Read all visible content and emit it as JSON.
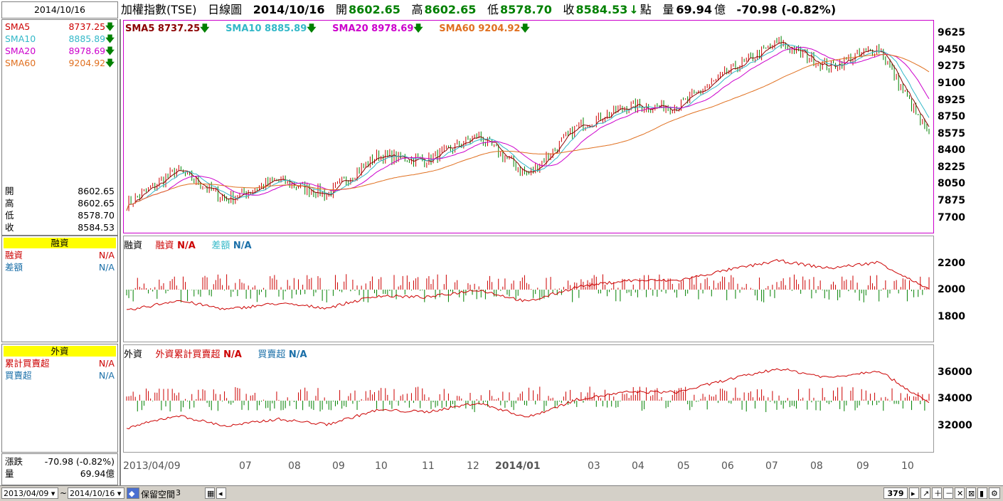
{
  "left": {
    "date": "2014/10/16",
    "sma": [
      {
        "label": "SMA5",
        "value": "8737.25",
        "color": "#cc0000"
      },
      {
        "label": "SMA10",
        "value": "8885.89",
        "color": "#33b8c8"
      },
      {
        "label": "SMA20",
        "value": "8978.69",
        "color": "#cc00cc"
      },
      {
        "label": "SMA60",
        "value": "9204.92",
        "color": "#e07020"
      }
    ],
    "ohlc": [
      {
        "k": "開",
        "v": "8602.65"
      },
      {
        "k": "高",
        "v": "8602.65"
      },
      {
        "k": "低",
        "v": "8578.70"
      },
      {
        "k": "收",
        "v": "8584.53"
      }
    ],
    "margin_title": "融資",
    "margin_rows": [
      {
        "k": "融資",
        "v": "N/A",
        "color": "#cc0000"
      },
      {
        "k": "差額",
        "v": "N/A",
        "color": "#1a6fa8"
      }
    ],
    "foreign_title": "外資",
    "foreign_rows": [
      {
        "k": "累計買賣超",
        "v": "N/A",
        "color": "#cc0000"
      },
      {
        "k": "買賣超",
        "v": "N/A",
        "color": "#1a6fa8"
      }
    ],
    "change_label": "漲跌",
    "change_value": "-70.98 (-0.82%)",
    "volume_label": "量",
    "volume_value": "69.94億"
  },
  "header": {
    "name": "加權指數(TSE)",
    "type": "日線圖",
    "date": "2014/10/16",
    "open_label": "開",
    "open": "8602.65",
    "high_label": "高",
    "high": "8602.65",
    "low_label": "低",
    "low": "8578.70",
    "close_label": "收",
    "close": "8584.53",
    "close_arrow": "↓",
    "unit": "點",
    "vol_label": "量",
    "volume": "69.94",
    "vol_unit": "億",
    "change": "-70.98 (-0.82%)"
  },
  "price_legend": [
    {
      "text": "SMA5 8737.25",
      "color": "#8b0000"
    },
    {
      "text": "SMA10 8885.89",
      "color": "#33b8c8"
    },
    {
      "text": "SMA20 8978.69",
      "color": "#cc00cc"
    },
    {
      "text": "SMA60 9204.92",
      "color": "#e07020"
    }
  ],
  "price_axis": [
    "9625",
    "9450",
    "9275",
    "9100",
    "8925",
    "8750",
    "8575",
    "8400",
    "8225",
    "8050",
    "7875",
    "7700"
  ],
  "margin_legend": {
    "a": "融資",
    "b": "融資",
    "b_val": "N/A",
    "c": "差額",
    "c_val": "N/A"
  },
  "margin_axis": [
    "2200",
    "2000",
    "1800"
  ],
  "foreign_legend": {
    "a": "外資",
    "b": "外資累計買賣超",
    "b_val": "N/A",
    "c": "買賣超",
    "c_val": "N/A"
  },
  "foreign_axis": [
    "36000",
    "34000",
    "32000"
  ],
  "x_ticks": [
    "2013/04/09",
    "07",
    "08",
    "09",
    "10",
    "11",
    "12",
    "2014/01",
    "03",
    "04",
    "05",
    "06",
    "07",
    "08",
    "09",
    "10"
  ],
  "toolbar": {
    "start": "2013/04/09",
    "tilde": "~",
    "end": "2014/10/16",
    "reserve_label": "保留空間",
    "reserve_value": "3",
    "count": "379"
  },
  "chart_data": {
    "type": "line",
    "title": "加權指數(TSE) 日線圖",
    "series": [
      {
        "name": "收",
        "approx_monthly": [
          7900,
          8250,
          7950,
          8150,
          8000,
          8400,
          8350,
          8600,
          8200,
          8700,
          8900,
          8900,
          9250,
          9550,
          9300,
          9500,
          8584
        ]
      }
    ],
    "ylim": [
      7600,
      9700
    ]
  }
}
